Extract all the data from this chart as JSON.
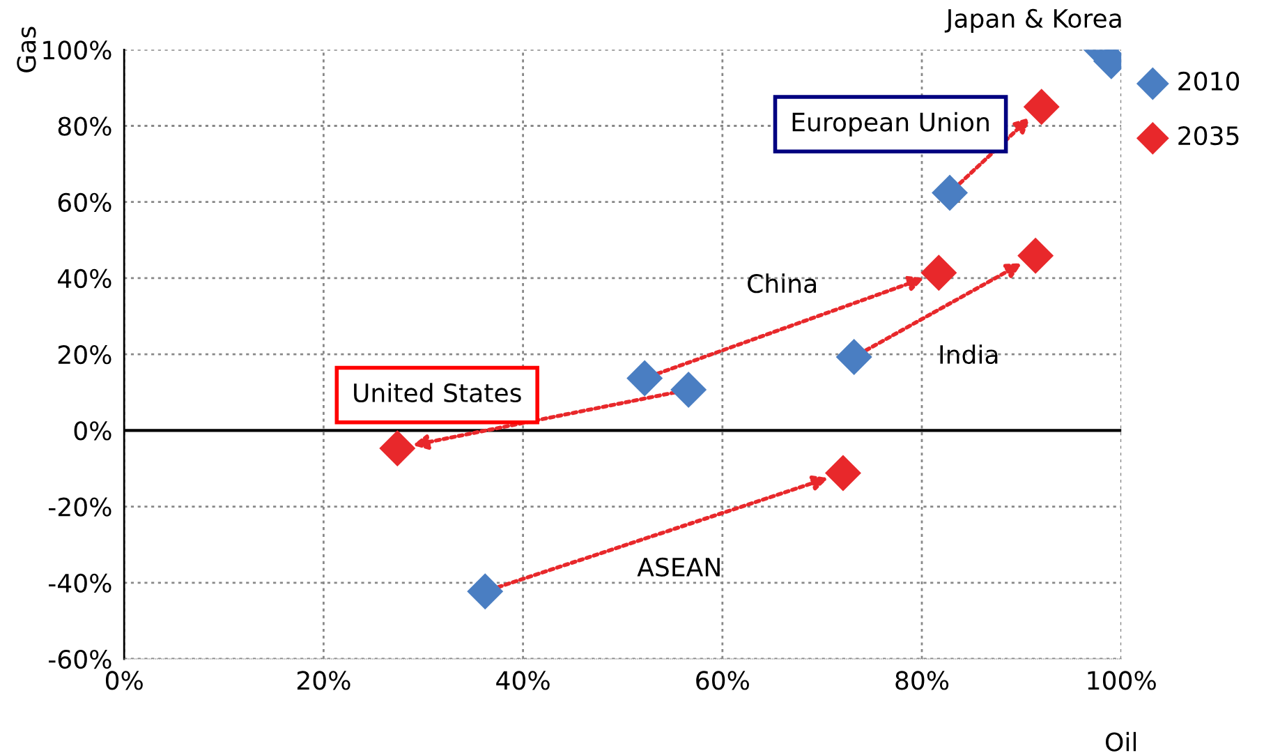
{
  "chart_data": {
    "type": "scatter",
    "xlabel": "Oil",
    "ylabel": "Gas",
    "series": [
      {
        "name": "2035",
        "color": "#e8282b",
        "x": [
          null,
          null,
          92,
          81.7,
          91.4,
          27.4,
          72.1
        ],
        "values": [
          null,
          null,
          85,
          41.4,
          45.9,
          -4.7,
          -11.2
        ]
      },
      {
        "name": "2010",
        "color": "#4a7ec2",
        "x": [
          98,
          99,
          82.8,
          52.2,
          73.2,
          56.6,
          36.2
        ],
        "values": [
          100,
          97,
          62.4,
          13.7,
          19.3,
          10.7,
          -42.3
        ]
      }
    ],
    "xlim": [
      0,
      100
    ],
    "xticks": [
      {
        "value": 0,
        "label": "0%"
      },
      {
        "value": 20,
        "label": "20%"
      },
      {
        "value": 40,
        "label": "40%"
      },
      {
        "value": 60,
        "label": "60%"
      },
      {
        "value": 80,
        "label": "80%"
      },
      {
        "value": 100,
        "label": "100%"
      }
    ],
    "ylim": [
      -60,
      100
    ],
    "yticks": [
      {
        "value": -60,
        "label": "-60%"
      },
      {
        "value": -40,
        "label": "-40%"
      },
      {
        "value": -20,
        "label": "-20%"
      },
      {
        "value": 0,
        "label": "0%"
      },
      {
        "value": 20,
        "label": "20%"
      },
      {
        "value": 40,
        "label": "40%"
      },
      {
        "value": 60,
        "label": "60%"
      },
      {
        "value": 80,
        "label": "80%"
      },
      {
        "value": 100,
        "label": "100%"
      }
    ],
    "ref_lines": [
      {
        "axis": "y",
        "value": 0,
        "color": "#000000",
        "line_style": "solid"
      }
    ],
    "annotations": [
      {
        "text": "Japan & Korea",
        "x": 98,
        "y": 100
      },
      {
        "text": "European Union",
        "x": 92,
        "y": 85
      },
      "China",
      "India",
      {
        "text": "United States",
        "x": 27.4,
        "y": -4.7
      },
      "ASEAN"
    ],
    "grid": true,
    "legend": "right",
    "marker": "diamond"
  }
}
